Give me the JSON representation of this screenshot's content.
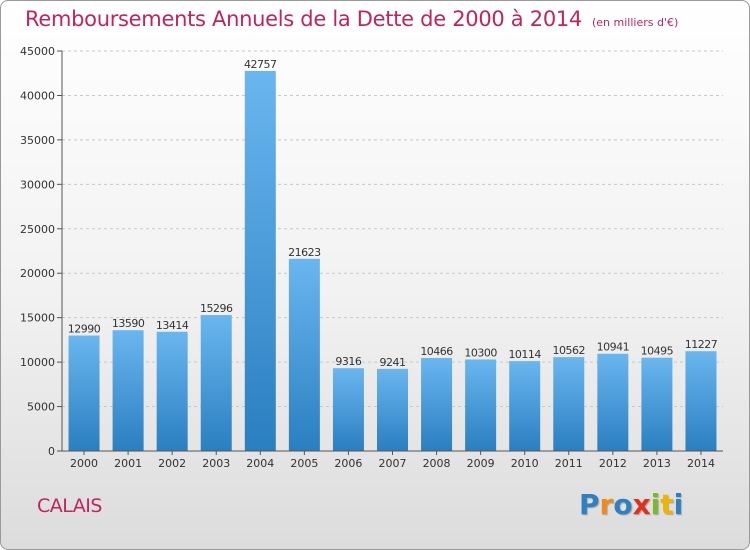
{
  "title": "Remboursements Annuels de la Dette de 2000 à 2014",
  "subtitle": "(en milliers d'€)",
  "city": "CALAIS",
  "logo": {
    "letters": [
      "P",
      "r",
      "o",
      "x",
      "i",
      "t",
      "i"
    ],
    "colors": [
      "#2f7fc1",
      "#f08a1c",
      "#2f7fc1",
      "#e0301e",
      "#7db72f",
      "#f0b400",
      "#2f7fc1"
    ]
  },
  "colors": {
    "bar_light": "#6ab6ef",
    "bar_dark": "#2a7fc0",
    "title": "#c0245f"
  },
  "chart_data": {
    "type": "bar",
    "categories": [
      "2000",
      "2001",
      "2002",
      "2003",
      "2004",
      "2005",
      "2006",
      "2007",
      "2008",
      "2009",
      "2010",
      "2011",
      "2012",
      "2013",
      "2014"
    ],
    "values": [
      12990,
      13590,
      13414,
      15296,
      42757,
      21623,
      9316,
      9241,
      10466,
      10300,
      10114,
      10562,
      10941,
      10495,
      11227
    ],
    "title": "Remboursements Annuels de la Dette de 2000 à 2014",
    "xlabel": "",
    "ylabel": "",
    "ylim": [
      0,
      45000
    ],
    "yticks": [
      0,
      5000,
      10000,
      15000,
      20000,
      25000,
      30000,
      35000,
      40000,
      45000
    ],
    "grid": true,
    "legend": "none"
  }
}
